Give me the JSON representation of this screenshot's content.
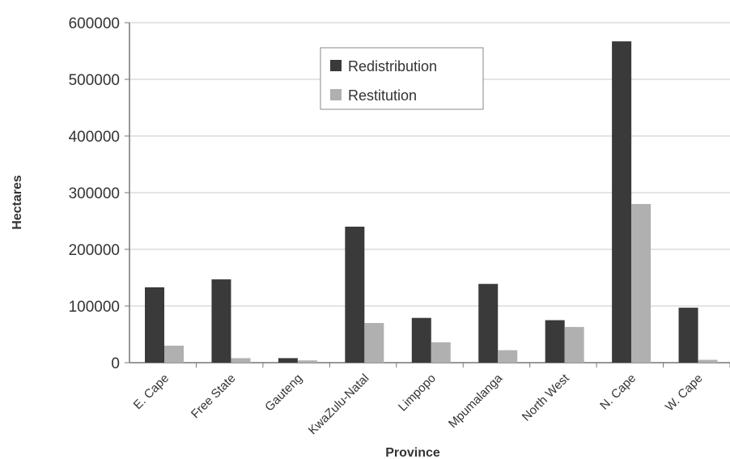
{
  "chart_data": {
    "type": "bar",
    "title": "",
    "xlabel": "Province",
    "ylabel": "Hectares",
    "categories": [
      "E. Cape",
      "Free State",
      "Gauteng",
      "KwaZulu-Natal",
      "Limpopo",
      "Mpumalanga",
      "North West",
      "N. Cape",
      "W. Cape"
    ],
    "series": [
      {
        "name": "Redistribution",
        "color": "#3a3a3a",
        "values": [
          133000,
          147000,
          8000,
          240000,
          79000,
          139000,
          75000,
          567000,
          97000
        ]
      },
      {
        "name": "Restitution",
        "color": "#b0b0b0",
        "values": [
          30000,
          8000,
          4000,
          70000,
          36000,
          22000,
          63000,
          280000,
          5000
        ]
      }
    ],
    "ylim": [
      0,
      600000
    ],
    "yticks": [
      "0",
      "100000",
      "200000",
      "300000",
      "400000",
      "500000",
      "600000"
    ],
    "grid": true,
    "legend_position": "top-center"
  }
}
